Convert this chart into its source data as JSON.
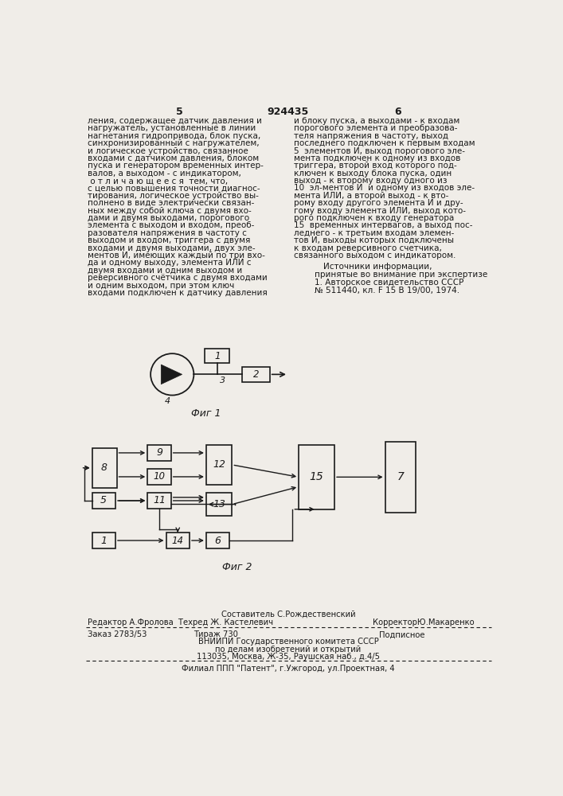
{
  "page_color": "#f0ede8",
  "text_color": "#1a1a1a",
  "header_number": "924435",
  "col_left_number": "5",
  "col_right_number": "6",
  "fig1_label": "Фиг 1",
  "fig2_label": "Фиг 2",
  "footer_composer": "Составитель С.Рождественский",
  "footer_editor": "Редактор А.Фролова  Техред Ж. Кастелевич",
  "footer_corrector": "КорректорЮ.Макаренко",
  "footer_order": "Заказ 2783/53",
  "footer_tirage": "Тираж 730",
  "footer_type": "Подписное",
  "footer_org1": "ВНИИПИ Государственного комитета СССР",
  "footer_org2": "по делам изобретений и открытий",
  "footer_org3": "113035, Москва, Ж-35, Раушская наб., д.4/5",
  "footer_branch": "Филиал ППП \"Патент\", г.Ужгород, ул.Проектная, 4"
}
